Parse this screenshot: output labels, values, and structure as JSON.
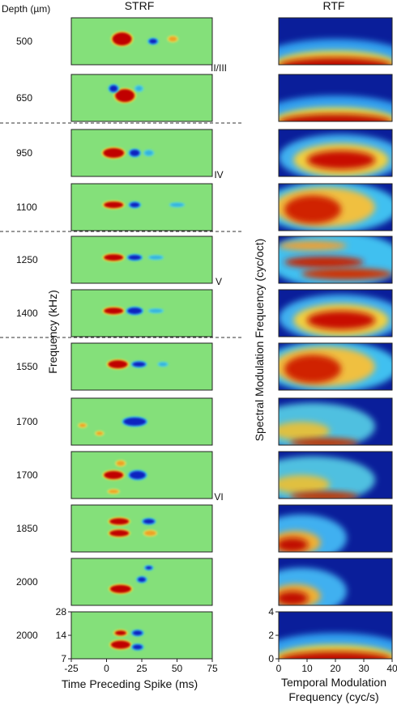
{
  "titles": {
    "depth": "Depth (µm)",
    "strf": "STRF",
    "rtf": "RTF"
  },
  "depths": [
    "500",
    "650",
    "950",
    "1100",
    "1250",
    "1400",
    "1550",
    "1700",
    "1700",
    "1850",
    "2000",
    "2000"
  ],
  "layers": [
    "II/III",
    "IV",
    "V",
    "VI"
  ],
  "strf_axis": {
    "xlabel": "Time Preceding Spike (ms)",
    "ylabel": "Frequency (kHz)",
    "xlim": [
      -25,
      75
    ],
    "xticks": [
      -25,
      0,
      25,
      50,
      75
    ],
    "ylim": [
      7,
      28
    ],
    "yticks": [
      7,
      14,
      28
    ],
    "ylog": true
  },
  "rtf_axis": {
    "xlabel_lines": [
      "Temporal Modulation",
      "Frequency (cyc/s)"
    ],
    "ylabel": "Spectral Modulation Frequency (cyc/oct)",
    "xlim": [
      0,
      40
    ],
    "xticks": [
      0,
      10,
      20,
      30,
      40
    ],
    "ylim": [
      0,
      4
    ],
    "yticks": [
      0,
      2,
      4
    ]
  }
}
